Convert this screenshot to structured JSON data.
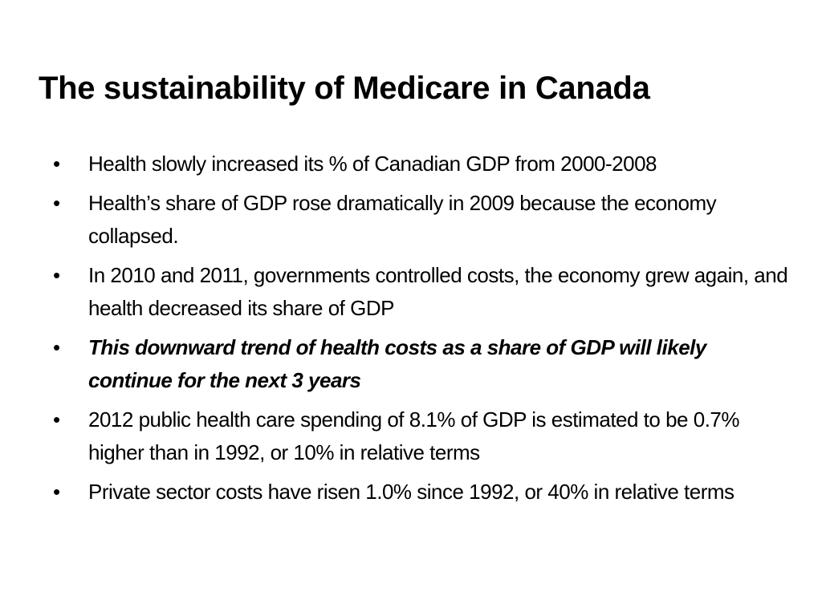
{
  "slide": {
    "title": "The sustainability of Medicare in Canada",
    "bullet_marker": "•",
    "bullets": [
      {
        "text": "Health slowly increased its % of Canadian GDP from 2000-2008"
      },
      {
        "text": "Health’s share of GDP rose dramatically in 2009 because the economy collapsed."
      },
      {
        "text": "In 2010 and 2011, governments controlled costs, the economy grew again, and health decreased its share of GDP"
      },
      {
        "text": "This downward trend of health costs as a share of GDP will likely continue for the next 3 years",
        "emphasis": "bold-italic"
      },
      {
        "text": "2012 public health care spending of 8.1% of GDP is estimated to be 0.7% higher than in 1992, or 10% in relative terms"
      },
      {
        "text": "Private sector costs have risen 1.0% since 1992, or 40% in relative terms"
      }
    ]
  }
}
